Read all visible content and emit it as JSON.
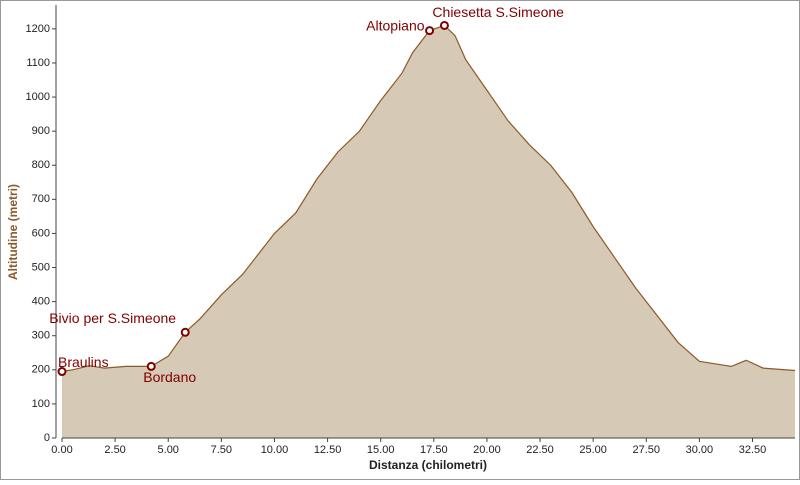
{
  "chart_data": {
    "type": "area",
    "x_label": "Distanza (chilometri)",
    "y_label": "Altitudine (metri)",
    "x": [
      0,
      0.5,
      1.3,
      2,
      3,
      4.2,
      5,
      5.8,
      6.5,
      7.5,
      8.5,
      10,
      11,
      12,
      13,
      14,
      15,
      16,
      16.5,
      17.3,
      18,
      18.5,
      19,
      20,
      21,
      22,
      23,
      24,
      25,
      26,
      27,
      28,
      29,
      30,
      31,
      31.5,
      32.2,
      33,
      34.5
    ],
    "series": [
      {
        "color": "#d6c9b5",
        "line_color": "#8b5a2b",
        "values": [
          195,
          200,
          212,
          205,
          210,
          210,
          240,
          310,
          350,
          420,
          480,
          600,
          660,
          760,
          840,
          900,
          990,
          1070,
          1130,
          1195,
          1210,
          1180,
          1110,
          1020,
          930,
          860,
          800,
          720,
          620,
          530,
          440,
          360,
          280,
          225,
          215,
          210,
          228,
          205,
          198
        ]
      }
    ],
    "waypoints": [
      {
        "label": "Braulins",
        "x": 0,
        "y": 195
      },
      {
        "label": "Bordano",
        "x": 4.2,
        "y": 210
      },
      {
        "label": "Bivio per S.Simeone",
        "x": 5.8,
        "y": 310
      },
      {
        "label": "Altopiano",
        "x": 17.3,
        "y": 1195
      },
      {
        "label": "Chiesetta S.Simeone",
        "x": 18.0,
        "y": 1210
      }
    ],
    "waypoint_color": "#800000",
    "xlim": [
      0,
      34.5
    ],
    "ylim": [
      0,
      1270
    ],
    "xticks": [
      {
        "value": 0,
        "label": "0.00"
      },
      {
        "value": 2.5,
        "label": "2.50"
      },
      {
        "value": 5,
        "label": "5.00"
      },
      {
        "value": 7.5,
        "label": "7.50"
      },
      {
        "value": 10,
        "label": "10.00"
      },
      {
        "value": 12.5,
        "label": "12.50"
      },
      {
        "value": 15,
        "label": "15.00"
      },
      {
        "value": 17.5,
        "label": "17.50"
      },
      {
        "value": 20,
        "label": "20.00"
      },
      {
        "value": 22.5,
        "label": "22.50"
      },
      {
        "value": 25,
        "label": "25.00"
      },
      {
        "value": 27.5,
        "label": "27.50"
      },
      {
        "value": 30,
        "label": "30.00"
      },
      {
        "value": 32.5,
        "label": "32.50"
      }
    ],
    "yticks": [
      0,
      100,
      200,
      300,
      400,
      500,
      600,
      700,
      800,
      900,
      1000,
      1100,
      1200
    ]
  }
}
